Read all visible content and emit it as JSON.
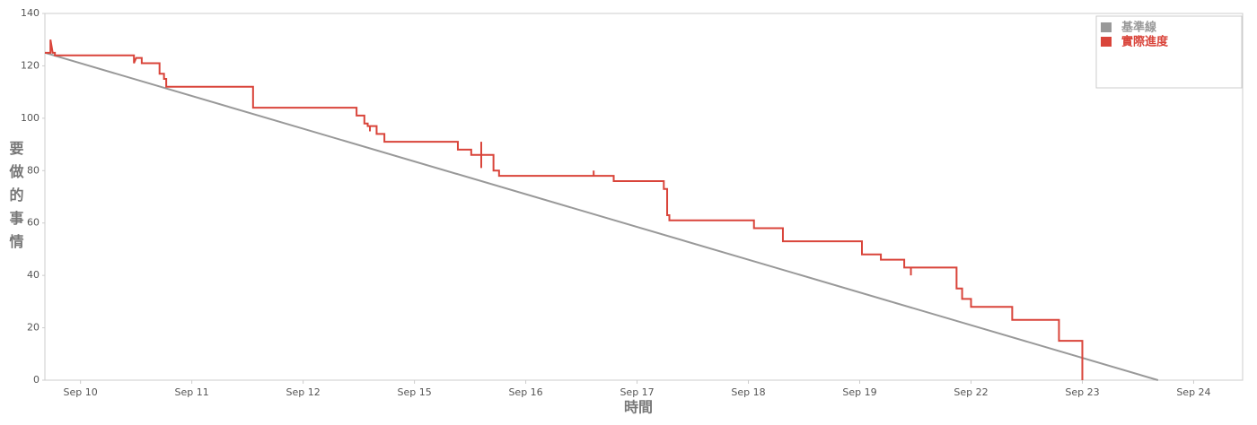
{
  "chart_data": {
    "type": "line",
    "x_label": "時間",
    "y_label": "要做的事情",
    "xlim": [
      -0.32,
      10.44
    ],
    "ylim": [
      0,
      140
    ],
    "yticks": [
      0,
      20,
      40,
      60,
      80,
      100,
      120,
      140
    ],
    "xticks": [
      {
        "value": 0,
        "label": "Sep 10"
      },
      {
        "value": 1,
        "label": "Sep 11"
      },
      {
        "value": 2,
        "label": "Sep 12"
      },
      {
        "value": 3,
        "label": "Sep 15"
      },
      {
        "value": 4,
        "label": "Sep 16"
      },
      {
        "value": 5,
        "label": "Sep 17"
      },
      {
        "value": 6,
        "label": "Sep 18"
      },
      {
        "value": 7,
        "label": "Sep 19"
      },
      {
        "value": 8,
        "label": "Sep 22"
      },
      {
        "value": 9,
        "label": "Sep 23"
      },
      {
        "value": 10,
        "label": "Sep 24"
      }
    ],
    "grid": false,
    "legend": "upper right",
    "series": [
      {
        "name": "基準線",
        "color": "#999999",
        "x": [
          -0.32,
          9.68
        ],
        "values": [
          125,
          0
        ]
      },
      {
        "name": "實際進度",
        "color": "#d9443a",
        "x": [
          -0.32,
          -0.27,
          -0.27,
          -0.25,
          -0.23,
          -0.23,
          0.48,
          0.48,
          0.5,
          0.55,
          0.55,
          0.71,
          0.71,
          0.75,
          0.75,
          0.77,
          0.77,
          1.55,
          1.55,
          2.48,
          2.48,
          2.55,
          2.55,
          2.58,
          2.58,
          2.6,
          2.6,
          2.6,
          2.66,
          2.66,
          2.73,
          2.73,
          3.39,
          3.39,
          3.51,
          3.51,
          3.6,
          3.6,
          3.6,
          3.6,
          3.71,
          3.71,
          3.76,
          3.76,
          4.61,
          4.61,
          4.61,
          4.79,
          4.79,
          5.24,
          5.24,
          5.27,
          5.27,
          5.29,
          5.29,
          6.05,
          6.05,
          6.31,
          6.31,
          7.02,
          7.02,
          7.19,
          7.19,
          7.4,
          7.4,
          7.46,
          7.46,
          7.46,
          7.87,
          7.87,
          7.92,
          7.92,
          8.0,
          8.0,
          8.37,
          8.37,
          8.79,
          8.79,
          9.0,
          9.0
        ],
        "values": [
          125,
          125,
          130,
          125,
          125,
          124,
          124,
          121,
          123,
          123,
          121,
          121,
          117,
          117,
          115,
          115,
          112,
          112,
          104,
          104,
          101,
          101,
          98,
          98,
          97,
          97,
          95,
          97,
          97,
          94,
          94,
          91,
          91,
          88,
          88,
          86,
          86,
          91,
          81,
          86,
          86,
          80,
          80,
          78,
          78,
          80,
          78,
          78,
          76,
          76,
          73,
          73,
          63,
          63,
          61,
          61,
          58,
          58,
          53,
          53,
          48,
          48,
          46,
          46,
          43,
          43,
          40,
          43,
          43,
          35,
          35,
          31,
          31,
          28,
          28,
          23,
          23,
          15,
          15,
          0
        ]
      }
    ]
  }
}
